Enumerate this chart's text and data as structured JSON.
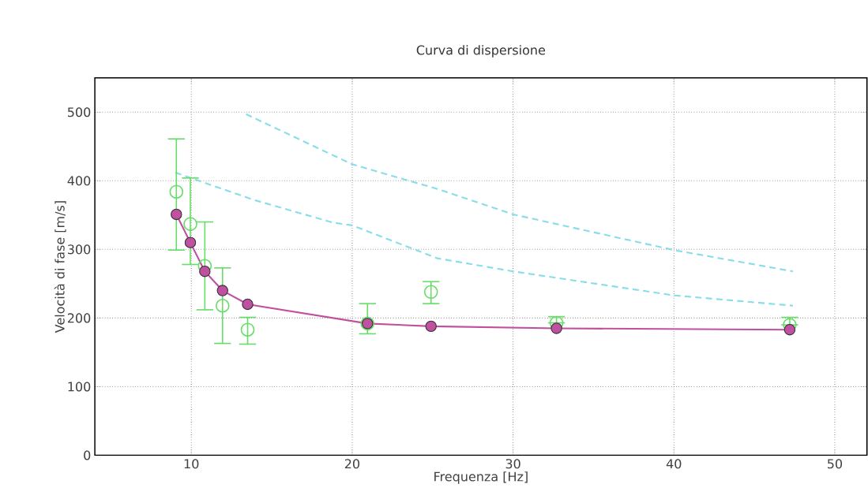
{
  "chart_data": {
    "type": "line",
    "title": "Curva di dispersione",
    "xlabel": "Frequenza [Hz]",
    "ylabel": "Velocità di fase  [m/s]",
    "xlim": [
      4,
      52
    ],
    "ylim": [
      0,
      550
    ],
    "xticks": [
      10,
      20,
      30,
      40,
      50
    ],
    "yticks": [
      0,
      100,
      200,
      300,
      400,
      500
    ],
    "grid": true,
    "series": [
      {
        "color": "#88dde8",
        "line_style": "dashed",
        "marker": "none",
        "x": [
          13.4,
          20,
          25.3,
          30,
          40,
          47.4
        ],
        "values": [
          497,
          424,
          388,
          351,
          299,
          268
        ]
      },
      {
        "color": "#88dde8",
        "line_style": "dashed",
        "marker": "none",
        "x": [
          9.0,
          13.9,
          18.8,
          20,
          25.3,
          30,
          40,
          47.4
        ],
        "values": [
          412,
          372,
          339,
          335,
          287,
          268,
          233,
          218
        ]
      },
      {
        "type": "scatter",
        "color": "#66dd66",
        "marker": "circle",
        "x": [
          9.07,
          9.94,
          10.84,
          11.94,
          13.5,
          20.95,
          24.9,
          32.7,
          47.2
        ],
        "values": [
          384,
          337,
          276,
          218,
          183,
          192,
          238,
          193,
          190
        ],
        "errors": [
          [
            299,
            461
          ],
          [
            278,
            404
          ],
          [
            212,
            340
          ],
          [
            163,
            273
          ],
          [
            162,
            201
          ],
          [
            177,
            221
          ],
          [
            221,
            253
          ],
          [
            193,
            202
          ],
          [
            190,
            201
          ]
        ]
      },
      {
        "color": "#c050a0",
        "line_style": "solid",
        "marker": "circle",
        "x": [
          9.07,
          9.94,
          10.84,
          11.94,
          13.5,
          20.95,
          24.9,
          32.7,
          47.2
        ],
        "values": [
          351,
          310,
          268,
          240,
          220,
          192,
          188,
          185,
          183
        ]
      }
    ]
  }
}
